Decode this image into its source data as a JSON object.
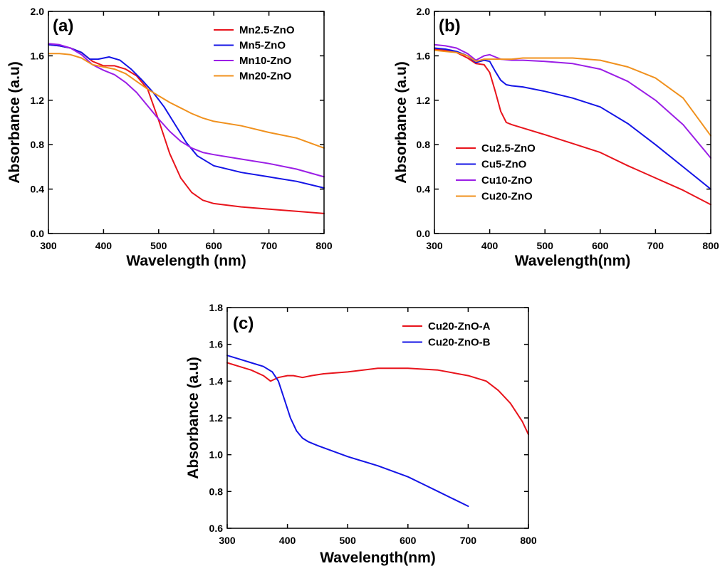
{
  "colors": {
    "red": "#e8141c",
    "blue": "#1414e6",
    "purple": "#9b1ee6",
    "orange": "#f0911e",
    "axis": "#000000"
  },
  "chart_data": [
    {
      "type": "line",
      "panel_label": "(a)",
      "xlabel": "Wavelength (nm)",
      "ylabel": "Absorbance (a.u)",
      "xlim": [
        300,
        800
      ],
      "ylim": [
        0.0,
        2.0
      ],
      "xticks": [
        300,
        400,
        500,
        600,
        700,
        800
      ],
      "xtick_labels": [
        "300",
        "400",
        "500",
        "600",
        "700",
        "800"
      ],
      "yticks": [
        0.0,
        0.4,
        0.8,
        1.2,
        1.6,
        2.0
      ],
      "ytick_labels": [
        "0.0",
        "0.4",
        "0.8",
        "1.2",
        "1.6",
        "2.0"
      ],
      "legend_position": "top-right",
      "series": [
        {
          "name": "Mn2.5-ZnO",
          "color": "red",
          "x": [
            300,
            320,
            340,
            360,
            380,
            400,
            420,
            440,
            460,
            480,
            500,
            520,
            540,
            560,
            580,
            600,
            650,
            700,
            750,
            800
          ],
          "y": [
            1.7,
            1.69,
            1.67,
            1.63,
            1.55,
            1.51,
            1.51,
            1.48,
            1.42,
            1.3,
            1.02,
            0.72,
            0.5,
            0.37,
            0.3,
            0.27,
            0.24,
            0.22,
            0.2,
            0.18
          ]
        },
        {
          "name": "Mn5-ZnO",
          "color": "blue",
          "x": [
            300,
            320,
            340,
            360,
            375,
            390,
            410,
            430,
            450,
            470,
            490,
            510,
            530,
            550,
            570,
            600,
            650,
            700,
            750,
            800
          ],
          "y": [
            1.7,
            1.69,
            1.67,
            1.63,
            1.57,
            1.57,
            1.59,
            1.56,
            1.48,
            1.38,
            1.27,
            1.14,
            0.98,
            0.82,
            0.7,
            0.61,
            0.55,
            0.51,
            0.47,
            0.41
          ]
        },
        {
          "name": "Mn10-ZnO",
          "color": "purple",
          "x": [
            300,
            320,
            340,
            360,
            380,
            400,
            420,
            440,
            460,
            480,
            500,
            520,
            540,
            560,
            580,
            600,
            650,
            700,
            750,
            800
          ],
          "y": [
            1.71,
            1.7,
            1.67,
            1.61,
            1.52,
            1.47,
            1.43,
            1.36,
            1.27,
            1.15,
            1.03,
            0.92,
            0.83,
            0.77,
            0.73,
            0.71,
            0.67,
            0.63,
            0.58,
            0.51
          ]
        },
        {
          "name": "Mn20-ZnO",
          "color": "orange",
          "x": [
            300,
            320,
            340,
            360,
            380,
            400,
            420,
            440,
            460,
            480,
            500,
            520,
            540,
            560,
            580,
            600,
            650,
            700,
            750,
            800
          ],
          "y": [
            1.62,
            1.62,
            1.61,
            1.58,
            1.52,
            1.5,
            1.48,
            1.44,
            1.37,
            1.3,
            1.24,
            1.18,
            1.13,
            1.08,
            1.04,
            1.01,
            0.97,
            0.91,
            0.86,
            0.77
          ]
        }
      ]
    },
    {
      "type": "line",
      "panel_label": "(b)",
      "xlabel": "Wavelength(nm)",
      "ylabel": "Absorbance (a.u)",
      "xlim": [
        300,
        800
      ],
      "ylim": [
        0.0,
        2.0
      ],
      "xticks": [
        300,
        400,
        500,
        600,
        700,
        800
      ],
      "xtick_labels": [
        "300",
        "400",
        "500",
        "600",
        "700",
        "800"
      ],
      "yticks": [
        0.0,
        0.4,
        0.8,
        1.2,
        1.6,
        2.0
      ],
      "ytick_labels": [
        "0.0",
        "0.4",
        "0.8",
        "1.2",
        "1.6",
        "2.0"
      ],
      "legend_position": "bottom-left",
      "series": [
        {
          "name": "Cu2.5-ZnO",
          "color": "red",
          "x": [
            300,
            320,
            340,
            360,
            375,
            390,
            400,
            410,
            420,
            430,
            440,
            460,
            500,
            550,
            600,
            650,
            700,
            750,
            800
          ],
          "y": [
            1.66,
            1.65,
            1.63,
            1.58,
            1.53,
            1.52,
            1.45,
            1.28,
            1.1,
            1.0,
            0.98,
            0.95,
            0.89,
            0.81,
            0.73,
            0.61,
            0.5,
            0.39,
            0.26
          ]
        },
        {
          "name": "Cu5-ZnO",
          "color": "blue",
          "x": [
            300,
            320,
            340,
            360,
            375,
            390,
            400,
            410,
            420,
            430,
            440,
            460,
            500,
            550,
            600,
            650,
            700,
            750,
            800
          ],
          "y": [
            1.67,
            1.66,
            1.64,
            1.6,
            1.54,
            1.56,
            1.55,
            1.46,
            1.38,
            1.34,
            1.33,
            1.32,
            1.28,
            1.22,
            1.14,
            0.99,
            0.8,
            0.6,
            0.4
          ]
        },
        {
          "name": "Cu10-ZnO",
          "color": "purple",
          "x": [
            300,
            320,
            340,
            360,
            375,
            390,
            400,
            410,
            420,
            440,
            460,
            500,
            550,
            600,
            650,
            700,
            750,
            800
          ],
          "y": [
            1.7,
            1.69,
            1.67,
            1.62,
            1.56,
            1.6,
            1.61,
            1.59,
            1.57,
            1.56,
            1.56,
            1.55,
            1.53,
            1.48,
            1.37,
            1.2,
            0.98,
            0.68
          ]
        },
        {
          "name": "Cu20-ZnO",
          "color": "orange",
          "x": [
            300,
            320,
            340,
            360,
            375,
            390,
            400,
            420,
            440,
            460,
            500,
            550,
            600,
            650,
            700,
            750,
            800
          ],
          "y": [
            1.65,
            1.64,
            1.63,
            1.6,
            1.55,
            1.57,
            1.57,
            1.57,
            1.57,
            1.58,
            1.58,
            1.58,
            1.56,
            1.5,
            1.4,
            1.22,
            0.88
          ]
        }
      ]
    },
    {
      "type": "line",
      "panel_label": "(c)",
      "xlabel": "Wavelength(nm)",
      "ylabel": "Absorbance (a.u)",
      "xlim": [
        300,
        800
      ],
      "ylim": [
        0.6,
        1.8
      ],
      "xticks": [
        300,
        400,
        500,
        600,
        700,
        800
      ],
      "xtick_labels": [
        "300",
        "400",
        "500",
        "600",
        "700",
        "800"
      ],
      "yticks": [
        0.6,
        0.8,
        1.0,
        1.2,
        1.4,
        1.6,
        1.8
      ],
      "ytick_labels": [
        "0.6",
        "0.8",
        "1.0",
        "1.2",
        "1.4",
        "1.6",
        "1.8"
      ],
      "legend_position": "top-right",
      "series": [
        {
          "name": "Cu20-ZnO-A",
          "color": "red",
          "x": [
            300,
            320,
            340,
            360,
            372,
            385,
            400,
            410,
            425,
            440,
            460,
            500,
            550,
            600,
            650,
            700,
            730,
            750,
            770,
            790,
            800
          ],
          "y": [
            1.5,
            1.48,
            1.46,
            1.43,
            1.4,
            1.42,
            1.43,
            1.43,
            1.42,
            1.43,
            1.44,
            1.45,
            1.47,
            1.47,
            1.46,
            1.43,
            1.4,
            1.35,
            1.28,
            1.18,
            1.11
          ]
        },
        {
          "name": "Cu20-ZnO-B",
          "color": "blue",
          "x": [
            300,
            320,
            340,
            360,
            375,
            385,
            395,
            405,
            415,
            425,
            435,
            450,
            500,
            550,
            600,
            625,
            650,
            675,
            700
          ],
          "y": [
            1.54,
            1.52,
            1.5,
            1.48,
            1.45,
            1.4,
            1.3,
            1.2,
            1.13,
            1.09,
            1.07,
            1.05,
            0.99,
            0.94,
            0.88,
            0.84,
            0.8,
            0.76,
            0.72
          ]
        }
      ]
    }
  ]
}
